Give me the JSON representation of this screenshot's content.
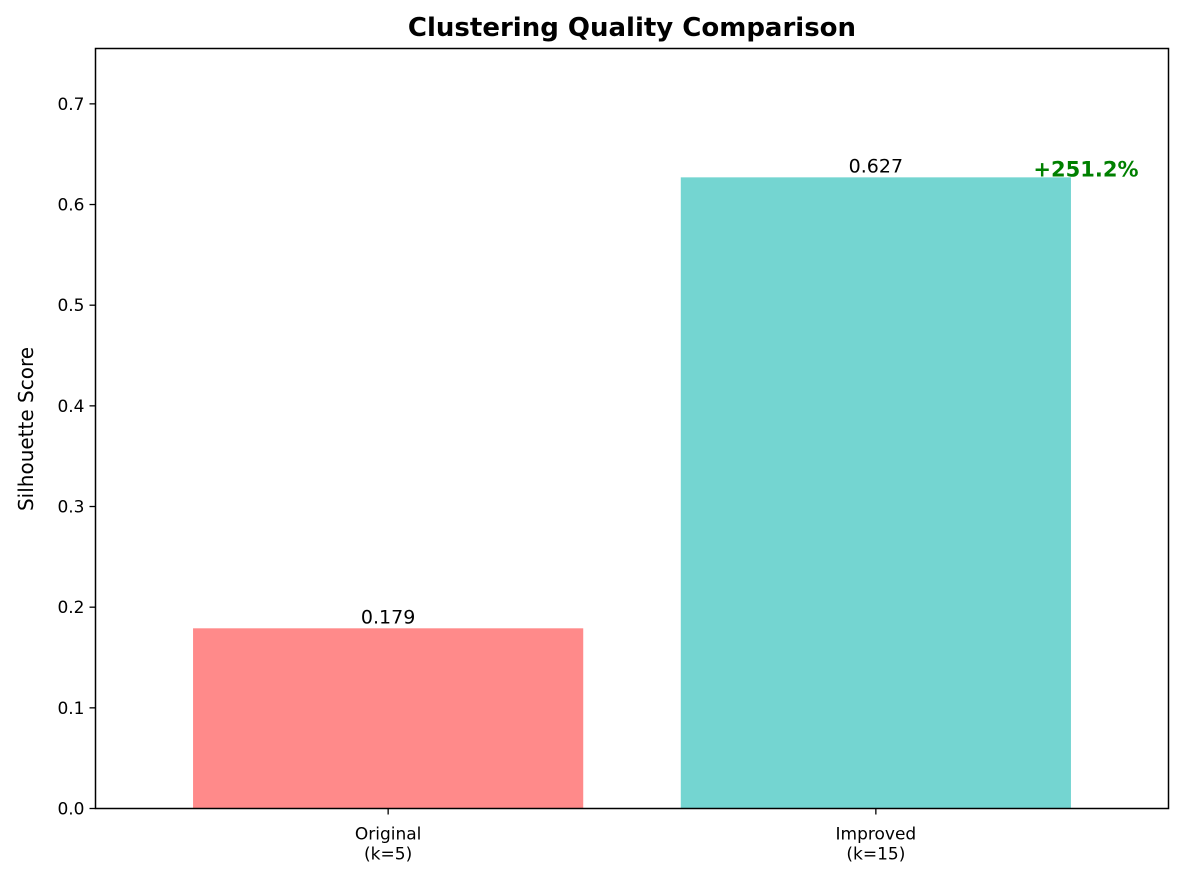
{
  "chart_data": {
    "type": "bar",
    "title": "Clustering Quality Comparison",
    "xlabel": "",
    "ylabel": "Silhouette Score",
    "categories": [
      [
        "Original",
        "(k=5)"
      ],
      [
        "Improved",
        "(k=15)"
      ]
    ],
    "values": [
      0.179,
      0.627
    ],
    "value_labels": [
      "0.179",
      "0.627"
    ],
    "colors": [
      "#ff8a8a",
      "#74d5d1"
    ],
    "ylim": [
      0,
      0.755
    ],
    "yticks": [
      0.0,
      0.1,
      0.2,
      0.3,
      0.4,
      0.5,
      0.6,
      0.7
    ],
    "ytick_labels": [
      "0.0",
      "0.1",
      "0.2",
      "0.3",
      "0.4",
      "0.5",
      "0.6",
      "0.7"
    ],
    "grid": false,
    "annotation": {
      "text": "+251.2%",
      "color": "#008000",
      "anchor_category": 1,
      "anchor_value": 0.627
    }
  }
}
